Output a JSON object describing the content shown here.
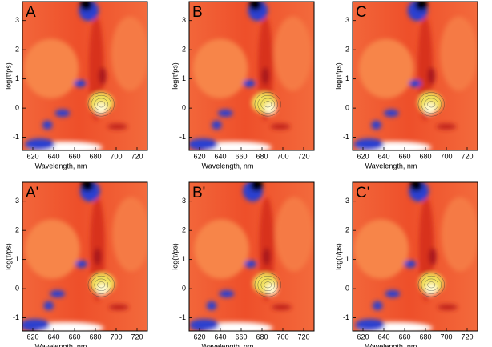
{
  "chart_data": [
    {
      "type": "contour",
      "label": "A",
      "xlabel": "Wavelength, nm",
      "ylabel": "log(τ/ps)",
      "xlim": [
        610,
        730
      ],
      "ylim": [
        -1.45,
        3.65
      ],
      "xticks": [
        620,
        640,
        660,
        680,
        700,
        720
      ],
      "yticks": [
        -1,
        0,
        1,
        2,
        3
      ]
    },
    {
      "type": "contour",
      "label": "B",
      "xlabel": "Wavelength, nm",
      "ylabel": "log(τ/ps)",
      "xlim": [
        610,
        730
      ],
      "ylim": [
        -1.45,
        3.65
      ],
      "xticks": [
        620,
        640,
        660,
        680,
        700,
        720
      ],
      "yticks": [
        -1,
        0,
        1,
        2,
        3
      ]
    },
    {
      "type": "contour",
      "label": "C",
      "xlabel": "Wavelength, nm",
      "ylabel": "log(τ/ps)",
      "xlim": [
        610,
        730
      ],
      "ylim": [
        -1.45,
        3.65
      ],
      "xticks": [
        620,
        640,
        660,
        680,
        700,
        720
      ],
      "yticks": [
        -1,
        0,
        1,
        2,
        3
      ]
    },
    {
      "type": "contour",
      "label": "A'",
      "xlabel": "Wavelength, nm",
      "ylabel": "log(τ/ps)",
      "xlim": [
        610,
        730
      ],
      "ylim": [
        -1.45,
        3.65
      ],
      "xticks": [
        620,
        640,
        660,
        680,
        700,
        720
      ],
      "yticks": [
        -1,
        0,
        1,
        2,
        3
      ]
    },
    {
      "type": "contour",
      "label": "B'",
      "xlabel": "Wavelength, nm",
      "ylabel": "log(τ/ps)",
      "xlim": [
        610,
        730
      ],
      "ylim": [
        -1.45,
        3.65
      ],
      "xticks": [
        620,
        640,
        660,
        680,
        700,
        720
      ],
      "yticks": [
        -1,
        0,
        1,
        2,
        3
      ]
    },
    {
      "type": "contour",
      "label": "C'",
      "xlabel": "Wavelength, nm",
      "ylabel": "log(τ/ps)",
      "xlim": [
        610,
        730
      ],
      "ylim": [
        -1.45,
        3.65
      ],
      "xticks": [
        620,
        640,
        660,
        680,
        700,
        720
      ],
      "yticks": [
        -1,
        0,
        1,
        2,
        3
      ]
    }
  ]
}
